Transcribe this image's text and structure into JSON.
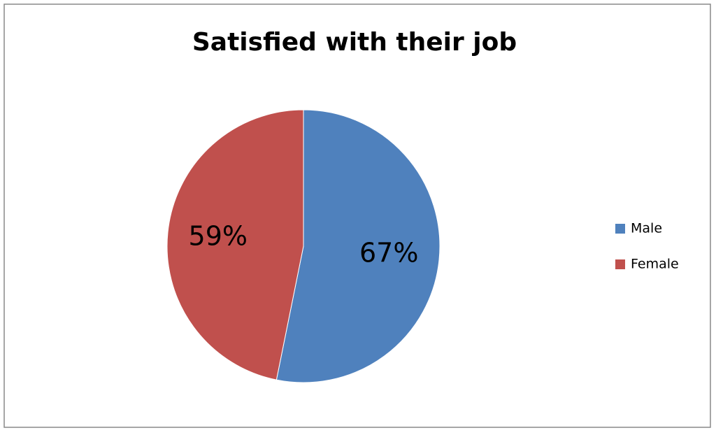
{
  "chart_data": {
    "type": "pie",
    "title": "Satisfied with their job",
    "categories": [
      "Male",
      "Female"
    ],
    "values": [
      67,
      59
    ],
    "value_labels": [
      "67%",
      "59%"
    ],
    "colors": [
      "#4f81bd",
      "#c0504d"
    ],
    "legend": "right"
  }
}
